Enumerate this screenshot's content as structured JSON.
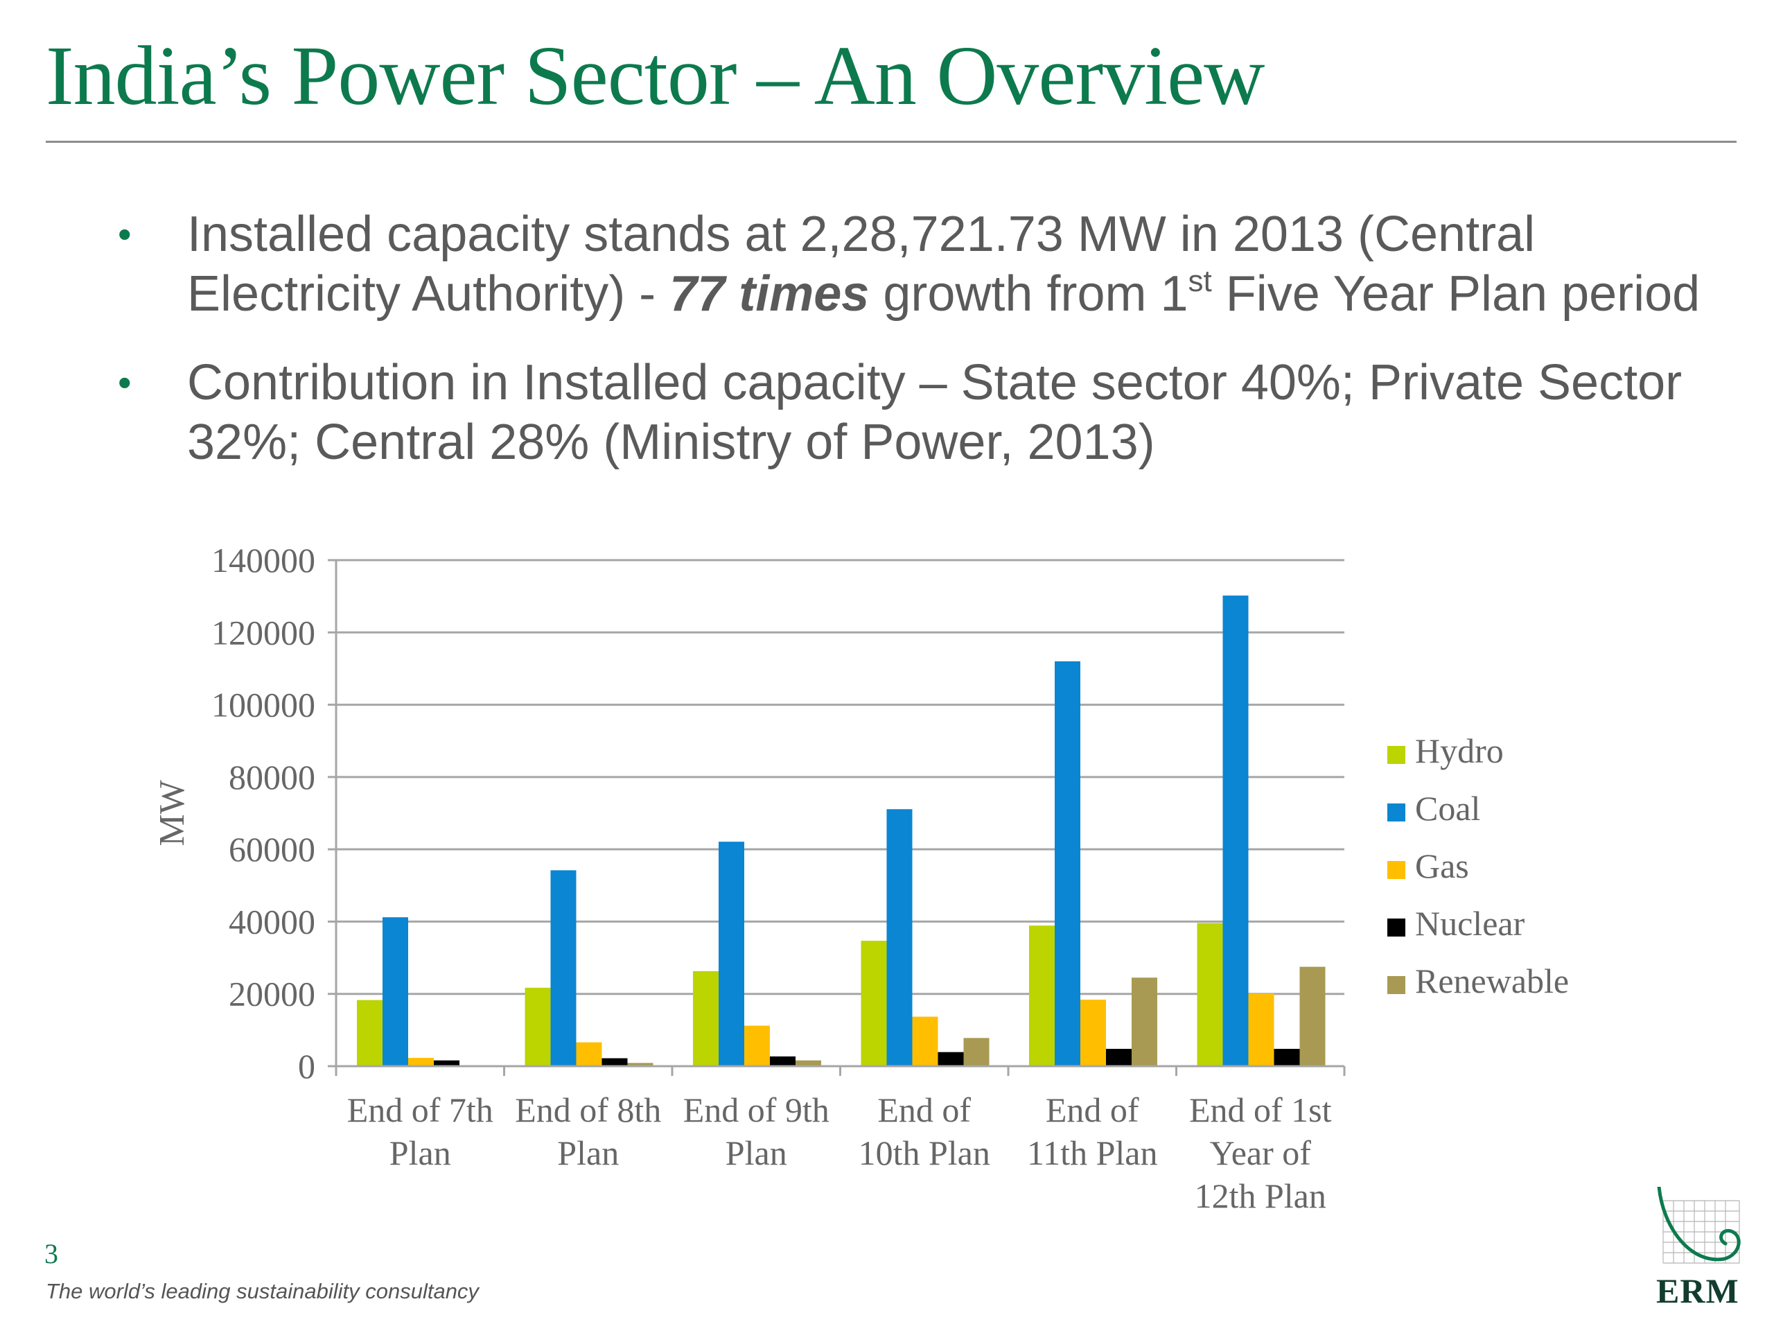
{
  "slide": {
    "title": "India’s Power Sector – An Overview",
    "bullets": [
      {
        "pre": "Installed capacity stands at 2,28,721.73 MW in 2013 (Central Electricity Authority) - ",
        "emphasis": "77 times",
        "mid": " growth from 1",
        "sup": "st",
        "post": " Five Year Plan period"
      },
      {
        "text": "Contribution in Installed capacity – State sector 40%; Private Sector 32%; Central 28% (Ministry of Power, 2013)"
      }
    ],
    "slide_number": "3",
    "footer": "The world’s leading sustainability consultancy",
    "logo_text": "ERM"
  },
  "chart_data": {
    "type": "bar",
    "title": "",
    "xlabel": "",
    "ylabel": "MW",
    "ylim": [
      0,
      140000
    ],
    "y_ticks": [
      0,
      20000,
      40000,
      60000,
      80000,
      100000,
      120000,
      140000
    ],
    "grid": true,
    "legend_position": "right",
    "categories": [
      [
        "End of 7th",
        "Plan"
      ],
      [
        "End of 8th",
        "Plan"
      ],
      [
        "End of 9th",
        "Plan"
      ],
      [
        "End of",
        "10th Plan"
      ],
      [
        "End of",
        "11th Plan"
      ],
      [
        "End of 1st",
        "Year of",
        "12th Plan"
      ]
    ],
    "series": [
      {
        "name": "Hydro",
        "color": "#bcd400",
        "values": [
          18300,
          21700,
          26300,
          34700,
          38900,
          39600
        ]
      },
      {
        "name": "Coal",
        "color": "#0a86d2",
        "values": [
          41200,
          54200,
          62100,
          71100,
          112000,
          130200
        ]
      },
      {
        "name": "Gas",
        "color": "#ffbf00",
        "values": [
          2300,
          6600,
          11200,
          13700,
          18400,
          20100
        ]
      },
      {
        "name": "Nuclear",
        "color": "#000000",
        "values": [
          1600,
          2200,
          2700,
          3900,
          4800,
          4800
        ]
      },
      {
        "name": "Renewable",
        "color": "#a89a52",
        "values": [
          0,
          900,
          1600,
          7800,
          24500,
          27500
        ]
      }
    ]
  }
}
